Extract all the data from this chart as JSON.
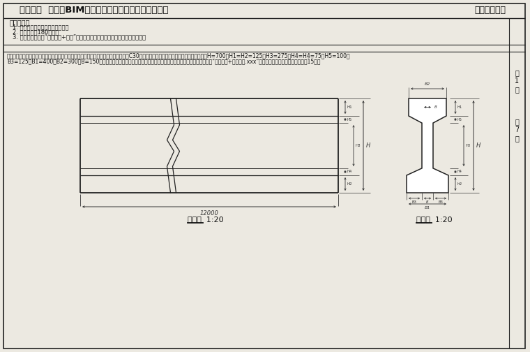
{
  "title": "第十二期  「全国BIM技能等级考试」二级（结构）试题",
  "title_right": "中国图学学会",
  "bg_color": "#ece9e1",
  "line_color": "#222222",
  "dim_color": "#333333",
  "exam_req_title": "考试要求：",
  "exam_reqs": [
    "1. 考试方式：计算机操作，闭卷；",
    "2. 考试时间：180分钟；",
    "3. 新建文件夹，以“准考证号+姓名”命名，用于存放本次考试中生成的全部文件。"
  ],
  "q_text1": "一、根据如下混凝土棁正视图与侧视图，建立混凝土棁构件参数化模板，混凝土强度等C30，并如图设置相应参数名称，各参数默认值为：H=700，H1=H2=125，H3=275，H4=H4=75，H5=100，",
  "q_text2": "B3=125，B1=400，B2=300，B=150，同时应对各参数进行约束，确保细部参数总和等于总体尺寸参数，请将模型以“混凝土棁+考生姓名.xxx”为文件名保存到考生文件夹中。（15分）",
  "front_label": "正视图  1:20",
  "side_label": "侧视图  1:20"
}
